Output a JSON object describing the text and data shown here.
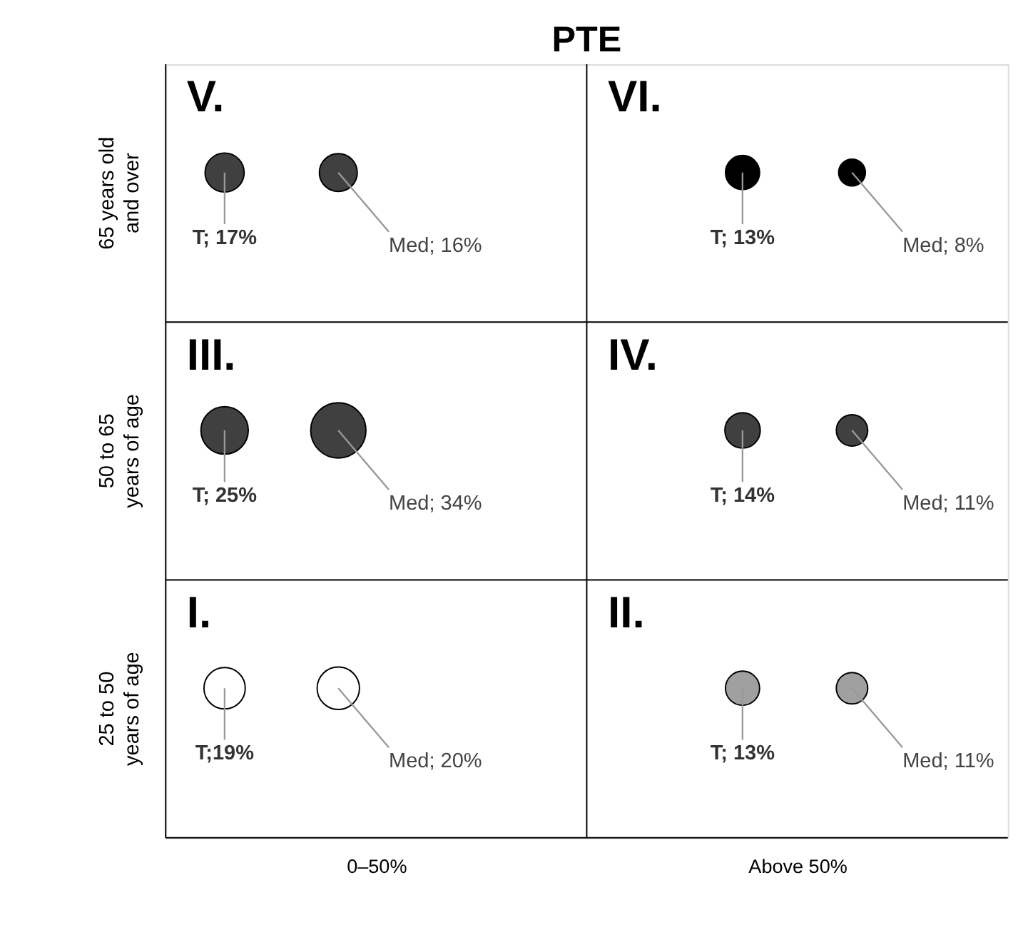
{
  "chart_data": {
    "type": "other",
    "title": "PTE",
    "categories": [
      "0–50%",
      "Above 50%"
    ],
    "y_categories": [
      "65 years old and over",
      "50 to 65 years of age",
      "25 to 50 years of age"
    ],
    "annotations": [
      "V.",
      "VI.",
      "III.",
      "IV.",
      "I.",
      "II."
    ],
    "series": [
      {
        "values": [
          17,
          13
        ],
        "colors": [
          "#404040",
          "#000000"
        ],
        "value_labels": [
          "T; 17%",
          "T; 13%"
        ]
      },
      {
        "values": [
          16,
          8
        ],
        "colors": [
          "#404040",
          "#000000"
        ],
        "value_labels": [
          "Med; 16%",
          "Med; 8%"
        ]
      },
      {
        "values": [
          25,
          14
        ],
        "colors": [
          "#404040",
          "#404040"
        ],
        "value_labels": [
          "T; 25%",
          "T; 14%"
        ]
      },
      {
        "values": [
          34,
          11
        ],
        "colors": [
          "#404040",
          "#404040"
        ],
        "value_labels": [
          "Med; 34%",
          "Med; 11%"
        ]
      },
      {
        "values": [
          19,
          13
        ],
        "colors": [
          "#ffffff",
          "#a0a0a0"
        ],
        "value_labels": [
          "T;19%",
          "T; 13%"
        ]
      },
      {
        "values": [
          20,
          11
        ],
        "colors": [
          "#ffffff",
          "#a0a0a0"
        ],
        "value_labels": [
          "Med; 20%",
          "Med; 11%"
        ]
      }
    ]
  }
}
